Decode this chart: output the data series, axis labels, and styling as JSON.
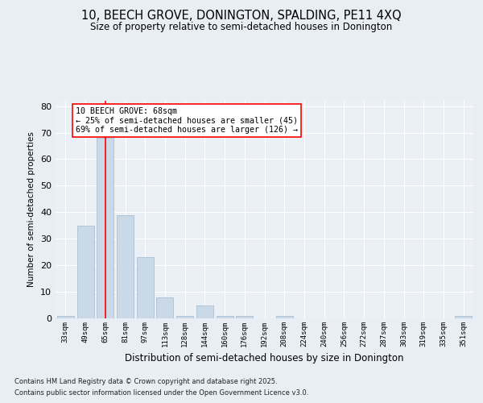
{
  "title1": "10, BEECH GROVE, DONINGTON, SPALDING, PE11 4XQ",
  "title2": "Size of property relative to semi-detached houses in Donington",
  "xlabel": "Distribution of semi-detached houses by size in Donington",
  "ylabel": "Number of semi-detached properties",
  "categories": [
    "33sqm",
    "49sqm",
    "65sqm",
    "81sqm",
    "97sqm",
    "113sqm",
    "128sqm",
    "144sqm",
    "160sqm",
    "176sqm",
    "192sqm",
    "208sqm",
    "224sqm",
    "240sqm",
    "256sqm",
    "272sqm",
    "287sqm",
    "303sqm",
    "319sqm",
    "335sqm",
    "351sqm"
  ],
  "values": [
    1,
    35,
    68,
    39,
    23,
    8,
    1,
    5,
    1,
    1,
    0,
    1,
    0,
    0,
    0,
    0,
    0,
    0,
    0,
    0,
    1
  ],
  "bar_color": "#c9d9e8",
  "bar_edge_color": "#a0b8cc",
  "annotation_title": "10 BEECH GROVE: 68sqm",
  "annotation_line1": "← 25% of semi-detached houses are smaller (45)",
  "annotation_line2": "69% of semi-detached houses are larger (126) →",
  "ylim": [
    0,
    82
  ],
  "yticks": [
    0,
    10,
    20,
    30,
    40,
    50,
    60,
    70,
    80
  ],
  "footnote1": "Contains HM Land Registry data © Crown copyright and database right 2025.",
  "footnote2": "Contains public sector information licensed under the Open Government Licence v3.0.",
  "background_color": "#e8eef4",
  "plot_bg_color": "#eaf0f6"
}
